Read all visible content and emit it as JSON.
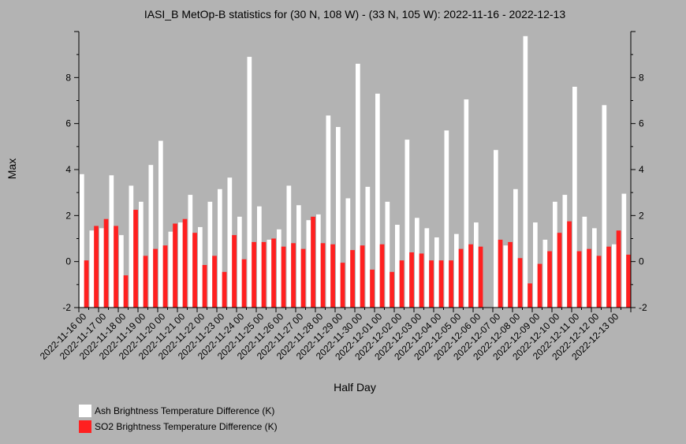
{
  "chart_data": {
    "type": "bar",
    "title": "IASI_B MetOp-B statistics for (30 N, 108 W) - (33 N, 105 W): 2022-11-16 - 2022-12-13",
    "xlabel": "Half Day",
    "ylabel": "Max",
    "ylim": [
      -2,
      10
    ],
    "yticks": [
      -2,
      0,
      2,
      4,
      6,
      8
    ],
    "x_tick_labels": [
      "2022-11-16 00",
      "2022-11-17 00",
      "2022-11-18 00",
      "2022-11-19 00",
      "2022-11-20 00",
      "2022-11-21 00",
      "2022-11-22 00",
      "2022-11-23 00",
      "2022-11-24 00",
      "2022-11-25 00",
      "2022-11-26 00",
      "2022-11-27 00",
      "2022-11-28 00",
      "2022-11-29 00",
      "2022-11-30 00",
      "2022-12-01 00",
      "2022-12-02 00",
      "2022-12-03 00",
      "2022-12-04 00",
      "2022-12-05 00",
      "2022-12-06 00",
      "2022-12-07 00",
      "2022-12-08 00",
      "2022-12-09 00",
      "2022-12-10 00",
      "2022-12-11 00",
      "2022-12-12 00",
      "2022-12-13 00"
    ],
    "series": [
      {
        "name": "Ash Brightness Temperature Difference (K)",
        "color": "#ffffff",
        "values": [
          3.8,
          1.35,
          1.45,
          3.75,
          1.15,
          3.3,
          2.6,
          4.2,
          5.25,
          1.3,
          1.7,
          2.9,
          1.5,
          2.6,
          3.15,
          3.65,
          1.95,
          8.9,
          2.4,
          0.95,
          1.4,
          3.3,
          2.45,
          1.8,
          2.05,
          6.35,
          5.85,
          2.75,
          8.6,
          3.25,
          7.3,
          2.6,
          1.6,
          5.3,
          1.9,
          1.45,
          1.05,
          5.7,
          1.2,
          7.05,
          1.7,
          null,
          4.85,
          0.7,
          3.15,
          9.8,
          1.7,
          0.95,
          2.6,
          2.9,
          7.6,
          1.95,
          1.45,
          6.8,
          0.75,
          2.95
        ]
      },
      {
        "name": "SO2 Brightness Temperature Difference (K)",
        "color": "#ff2020",
        "values": [
          0.05,
          1.55,
          1.85,
          1.55,
          -0.6,
          2.25,
          0.25,
          0.55,
          0.7,
          1.65,
          1.85,
          1.25,
          -0.15,
          0.25,
          -0.45,
          1.15,
          0.1,
          0.85,
          0.85,
          1.0,
          0.65,
          0.8,
          0.55,
          1.95,
          0.8,
          0.75,
          -0.05,
          0.5,
          0.7,
          -0.35,
          0.75,
          -0.45,
          0.05,
          0.4,
          0.35,
          0.05,
          0.05,
          0.05,
          0.55,
          0.75,
          0.65,
          null,
          0.95,
          0.85,
          0.15,
          -0.95,
          -0.1,
          0.45,
          1.25,
          1.75,
          0.45,
          0.55,
          0.25,
          0.65,
          1.35,
          0.3
        ]
      }
    ],
    "legend_position": "bottom-left",
    "grid": false
  }
}
